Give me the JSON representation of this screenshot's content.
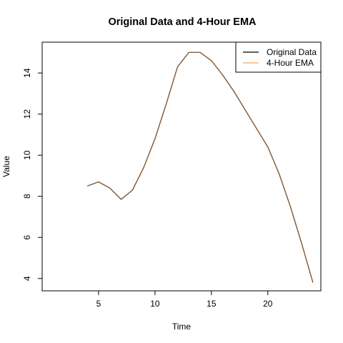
{
  "chart_data": {
    "type": "line",
    "title": "Original Data and 4-Hour EMA",
    "xlabel": "Time",
    "ylabel": "Value",
    "xlim": [
      0,
      24.7
    ],
    "ylim": [
      3.4,
      15.5
    ],
    "x_ticks": [
      5,
      10,
      15,
      20
    ],
    "y_ticks": [
      4,
      6,
      8,
      10,
      12,
      14
    ],
    "legend_position": "top-right",
    "grid": false,
    "x": [
      4,
      5,
      6,
      7,
      8,
      9,
      10,
      11,
      12,
      13,
      14,
      15,
      16,
      17,
      18,
      19,
      20,
      21,
      22,
      23,
      24
    ],
    "series": [
      {
        "name": "Original Data",
        "color": "#000000",
        "values": [
          8.5,
          8.7,
          8.4,
          7.85,
          8.3,
          9.4,
          10.8,
          12.5,
          14.3,
          15.0,
          15.0,
          14.6,
          13.9,
          13.1,
          12.2,
          11.3,
          10.4,
          9.1,
          7.5,
          5.7,
          3.8
        ]
      },
      {
        "name": "4-Hour EMA",
        "color": "#f4a460",
        "values": [
          8.5,
          8.7,
          8.4,
          7.85,
          8.3,
          9.4,
          10.8,
          12.5,
          14.3,
          15.0,
          15.0,
          14.6,
          13.9,
          13.1,
          12.2,
          11.3,
          10.4,
          9.1,
          7.5,
          5.7,
          3.8
        ]
      }
    ]
  }
}
